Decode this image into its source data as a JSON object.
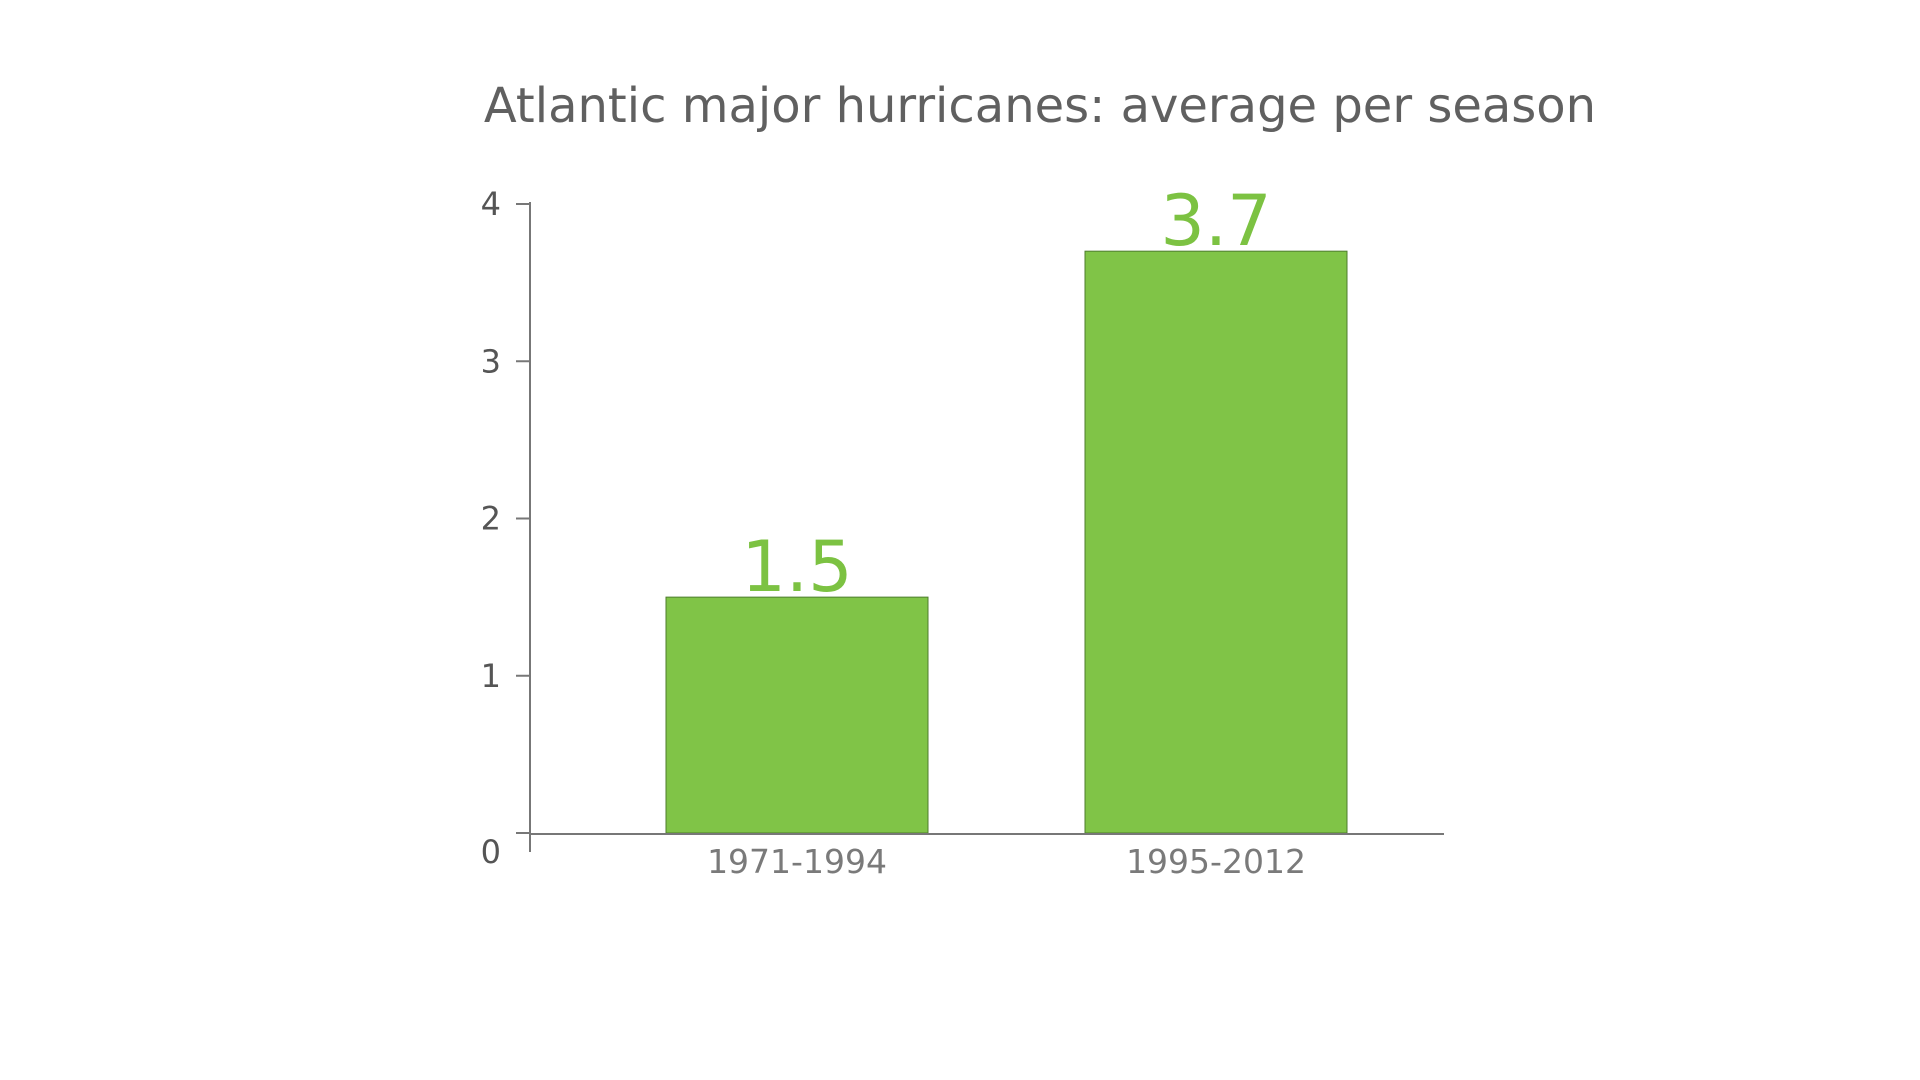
{
  "chart_data": {
    "type": "bar",
    "title": "Atlantic major hurricanes: average per season",
    "xlabel": "",
    "ylabel": "",
    "categories": [
      "1971-1994",
      "1995-2012"
    ],
    "values": [
      1.5,
      3.7
    ],
    "data_labels": [
      "1.5",
      "3.7"
    ],
    "ylim": [
      0,
      4
    ],
    "yticks": [
      0,
      1,
      2,
      3,
      4
    ],
    "grid": false,
    "legend": "none"
  },
  "colors": {
    "bar": "#80c447",
    "bar_edge": "#4e7d2e",
    "data_label": "#7cc242",
    "title": "#606060",
    "tick_label": "#555555",
    "category_label": "#7a7a7a",
    "axis": "#777777"
  }
}
